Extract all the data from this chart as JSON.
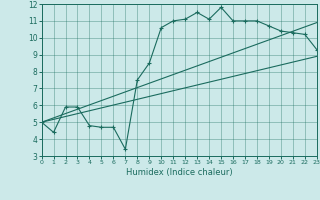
{
  "xlabel": "Humidex (Indice chaleur)",
  "xlim": [
    0,
    23
  ],
  "ylim": [
    3,
    12
  ],
  "xticks": [
    0,
    1,
    2,
    3,
    4,
    5,
    6,
    7,
    8,
    9,
    10,
    11,
    12,
    13,
    14,
    15,
    16,
    17,
    18,
    19,
    20,
    21,
    22,
    23
  ],
  "yticks": [
    3,
    4,
    5,
    6,
    7,
    8,
    9,
    10,
    11,
    12
  ],
  "bg_color": "#cce9e9",
  "line_color": "#1a6b5e",
  "curve_x": [
    0,
    1,
    2,
    3,
    4,
    5,
    6,
    7,
    8,
    9,
    10,
    11,
    12,
    13,
    14,
    15,
    16,
    17,
    18,
    19,
    20,
    21,
    22,
    23
  ],
  "curve_y": [
    5.0,
    4.4,
    5.9,
    5.9,
    4.8,
    4.7,
    4.7,
    3.4,
    7.5,
    8.5,
    10.6,
    11.0,
    11.1,
    11.5,
    11.1,
    11.8,
    11.0,
    11.0,
    11.0,
    10.7,
    10.4,
    10.3,
    10.2,
    9.3
  ],
  "line1_x": [
    0,
    23
  ],
  "line1_y": [
    5.0,
    8.9
  ],
  "line2_x": [
    0,
    23
  ],
  "line2_y": [
    5.0,
    10.9
  ]
}
